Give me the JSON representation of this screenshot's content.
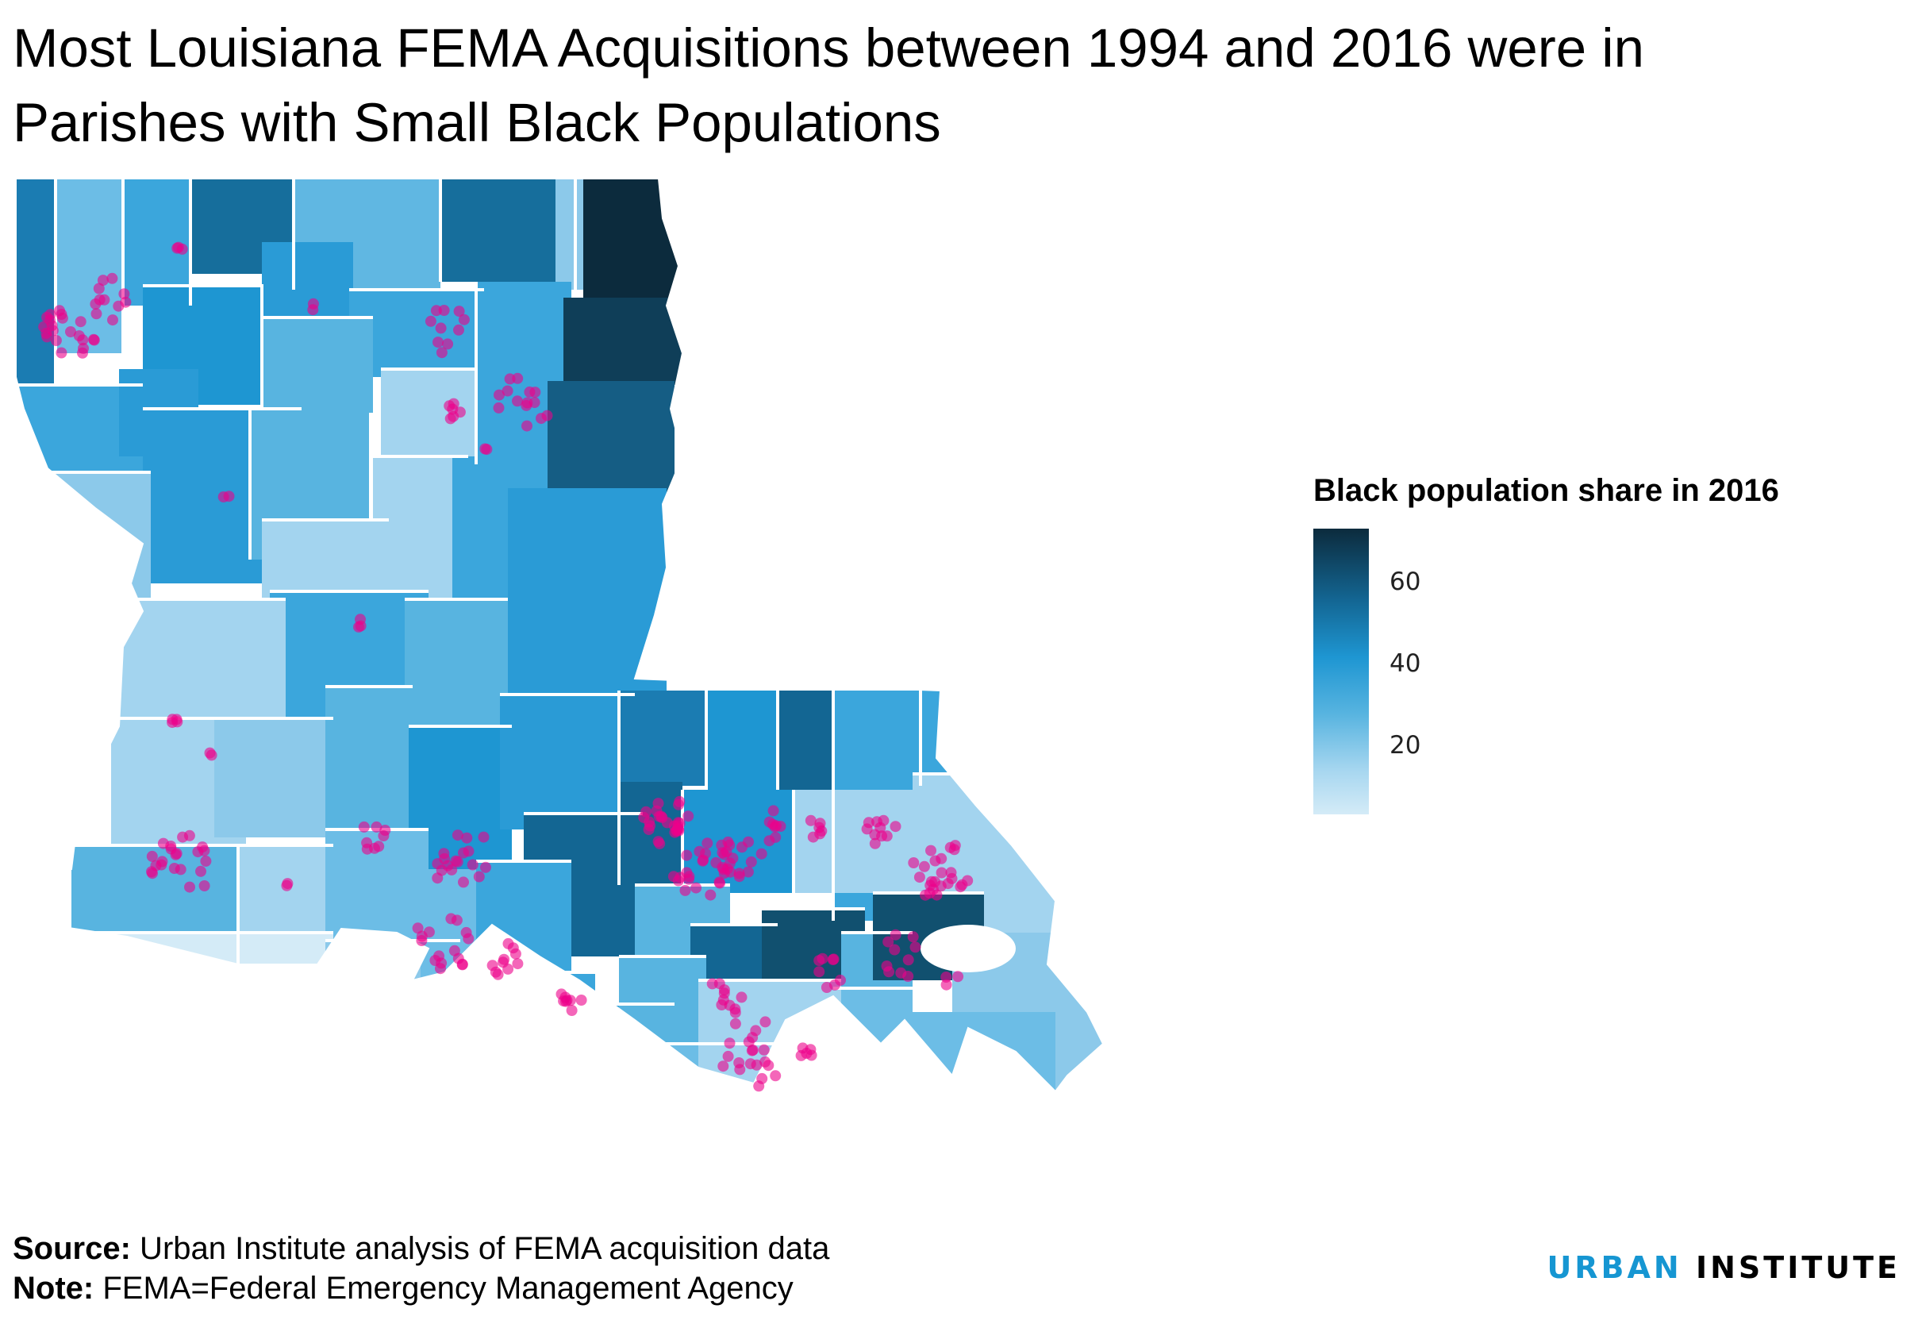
{
  "title": "Most Louisiana FEMA Acquisitions between 1994 and 2016 were in Parishes with Small Black Populations",
  "legend": {
    "title": "Black population share in 2016",
    "ticks": [
      {
        "label": "60",
        "value": 60
      },
      {
        "label": "40",
        "value": 40
      },
      {
        "label": "20",
        "value": 20
      }
    ],
    "range": [
      3,
      73
    ],
    "colors": {
      "high": "#0c2b3d",
      "mid": "#1e96d2",
      "low": "#d4ebf7"
    }
  },
  "map": {
    "region": "Louisiana parishes",
    "point_color": "#ec008b",
    "border_color": "#ffffff"
  },
  "footer": {
    "source_label": "Source:",
    "source_text": " Urban Institute analysis of FEMA acquisition data",
    "note_label": "Note:",
    "note_text": " FEMA=Federal Emergency Management Agency"
  },
  "brand": {
    "word1": "URBAN",
    "word2": "INSTITUTE"
  }
}
